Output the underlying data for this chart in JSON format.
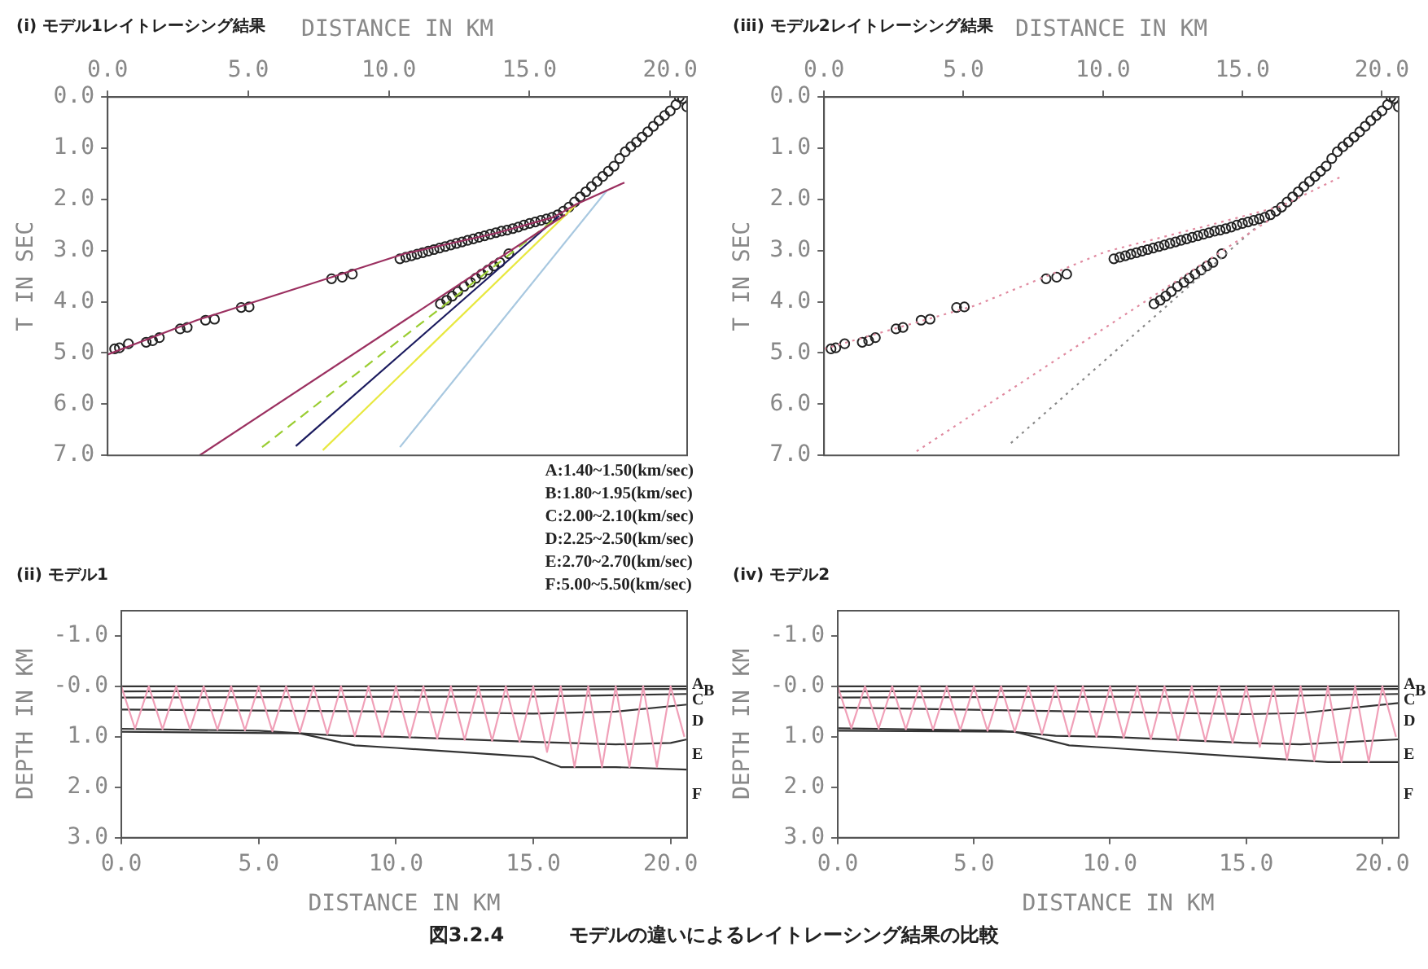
{
  "chart_data": [
    {
      "type": "line",
      "title": "(i) モデル1レイトレーシング結果",
      "annotations": [
        "A:1.40~1.50(km/sec)",
        "B:1.80~1.95(km/sec)",
        "C:2.00~2.10(km/sec)",
        "D:2.25~2.50(km/sec)",
        "E:2.70~2.70(km/sec)",
        "F:5.00~5.50(km/sec)"
      ],
      "xlabel": "DISTANCE IN KM",
      "ylabel": "T IN SEC",
      "xlim": [
        0,
        20.6
      ],
      "xticks": [
        {
          "value": 0,
          "label": "0.0"
        },
        {
          "value": 5,
          "label": "5.0"
        },
        {
          "value": 10,
          "label": "10.0"
        },
        {
          "value": 15,
          "label": "15.0"
        },
        {
          "value": 20,
          "label": "20.0"
        }
      ],
      "ylim": [
        7,
        0
      ],
      "yticks": [
        {
          "value": 0,
          "label": "0.0"
        },
        {
          "value": 1,
          "label": "1.0"
        },
        {
          "value": 2,
          "label": "2.0"
        },
        {
          "value": 3,
          "label": "3.0"
        },
        {
          "value": 4,
          "label": "4.0"
        },
        {
          "value": 5,
          "label": "5.0"
        },
        {
          "value": 6,
          "label": "6.0"
        },
        {
          "value": 7,
          "label": "7.0"
        }
      ],
      "series": [
        {
          "type": "line",
          "color": "#9b3060",
          "x": [
            0,
            3.17,
            7.39,
            10.56,
            13.73,
            15.84,
            16.68,
            18.37
          ],
          "values": [
            5.03,
            4.36,
            3.62,
            3.06,
            2.67,
            2.35,
            2.09,
            1.67
          ]
        },
        {
          "type": "line",
          "color": "#9b3060",
          "x": [
            3.27,
            16.26
          ],
          "values": [
            7.0,
            2.3
          ]
        },
        {
          "type": "line",
          "color": "#9acd32",
          "line_style": "dashed",
          "x": [
            5.49,
            15.84
          ],
          "values": [
            6.84,
            2.41
          ]
        },
        {
          "type": "line",
          "color": "#1a1a5e",
          "x": [
            6.69,
            16.05
          ],
          "values": [
            6.82,
            2.32
          ]
        },
        {
          "type": "line",
          "color": "#e8e840",
          "x": [
            7.65,
            16.68
          ],
          "values": [
            6.9,
            2.09
          ]
        },
        {
          "type": "line",
          "color": "#a8c8e0",
          "x": [
            10.39,
            17.74
          ],
          "values": [
            6.84,
            1.83
          ]
        },
        {
          "type": "scatter",
          "color": "#222222",
          "marker": "circle",
          "x": [
            0.25,
            0.42,
            0.74,
            1.37,
            1.6,
            1.84,
            2.58,
            2.83,
            3.48,
            3.8,
            4.75,
            5.03,
            7.96,
            8.34,
            8.7,
            10.39,
            10.6,
            10.8,
            11.0,
            11.2,
            11.4,
            11.6,
            11.8,
            12.0,
            12.2,
            12.4,
            12.6,
            12.8,
            13.0,
            13.2,
            13.4,
            13.6,
            13.8,
            14.0,
            14.2,
            14.4,
            14.6,
            14.8,
            15.0,
            15.2,
            15.4,
            15.6,
            15.8,
            16.0,
            16.2,
            16.4,
            16.6,
            16.8,
            17.0,
            17.2,
            17.4,
            17.6,
            17.8,
            18.0,
            18.2,
            18.4,
            18.6,
            18.8,
            19.0,
            19.2,
            19.4,
            19.6,
            19.8,
            20.0,
            20.2,
            20.32,
            20.44,
            20.59,
            11.83,
            12.05,
            12.25,
            12.45,
            12.67,
            12.9,
            13.09,
            13.3,
            13.52,
            13.73,
            13.94,
            14.26
          ],
          "values": [
            4.92,
            4.9,
            4.82,
            4.79,
            4.76,
            4.7,
            4.53,
            4.5,
            4.36,
            4.34,
            4.11,
            4.1,
            3.55,
            3.52,
            3.46,
            3.16,
            3.13,
            3.1,
            3.07,
            3.04,
            3.01,
            2.98,
            2.95,
            2.92,
            2.89,
            2.86,
            2.83,
            2.8,
            2.77,
            2.74,
            2.71,
            2.68,
            2.65,
            2.62,
            2.6,
            2.57,
            2.54,
            2.5,
            2.47,
            2.44,
            2.41,
            2.38,
            2.35,
            2.3,
            2.23,
            2.15,
            2.05,
            1.95,
            1.85,
            1.75,
            1.65,
            1.55,
            1.45,
            1.35,
            1.2,
            1.07,
            0.97,
            0.88,
            0.78,
            0.68,
            0.57,
            0.46,
            0.36,
            0.27,
            0.15,
            0.0,
            0.03,
            0.19,
            4.04,
            3.97,
            3.89,
            3.8,
            3.7,
            3.62,
            3.54,
            3.46,
            3.38,
            3.3,
            3.23,
            3.06
          ]
        }
      ]
    },
    {
      "type": "line",
      "title": "(iii) モデル2レイトレーシング結果",
      "xlabel": "DISTANCE IN KM",
      "ylabel": "T IN SEC",
      "xlim": [
        0,
        20.6
      ],
      "xticks": [
        {
          "value": 0,
          "label": "0.0"
        },
        {
          "value": 5,
          "label": "5.0"
        },
        {
          "value": 10,
          "label": "10.0"
        },
        {
          "value": 15,
          "label": "15.0"
        },
        {
          "value": 20,
          "label": "20.0"
        }
      ],
      "ylim": [
        7,
        0
      ],
      "yticks": [
        {
          "value": 0,
          "label": "0.0"
        },
        {
          "value": 1,
          "label": "1.0"
        },
        {
          "value": 2,
          "label": "2.0"
        },
        {
          "value": 3,
          "label": "3.0"
        },
        {
          "value": 4,
          "label": "4.0"
        },
        {
          "value": 5,
          "label": "5.0"
        },
        {
          "value": 6,
          "label": "6.0"
        },
        {
          "value": 7,
          "label": "7.0"
        }
      ],
      "series": [
        {
          "type": "line",
          "color": "#e08aa0",
          "line_style": "dotted",
          "x": [
            0,
            5.44,
            10.1,
            13.9,
            16.4,
            18.56
          ],
          "values": [
            4.92,
            4.07,
            3.02,
            2.49,
            2.13,
            1.55
          ]
        },
        {
          "type": "line",
          "color": "#e08aa0",
          "line_style": "dotted",
          "x": [
            3.32,
            16.0
          ],
          "values": [
            6.92,
            2.39
          ]
        },
        {
          "type": "line",
          "color": "#888888",
          "line_style": "dotted",
          "x": [
            6.7,
            15.6
          ],
          "values": [
            6.76,
            2.49
          ]
        },
        {
          "type": "scatter",
          "color": "#222222",
          "marker": "circle",
          "x": [
            0.25,
            0.42,
            0.74,
            1.37,
            1.6,
            1.84,
            2.58,
            2.83,
            3.48,
            3.8,
            4.75,
            5.03,
            7.96,
            8.34,
            8.7,
            10.39,
            10.6,
            10.8,
            11.0,
            11.2,
            11.4,
            11.6,
            11.8,
            12.0,
            12.2,
            12.4,
            12.6,
            12.8,
            13.0,
            13.2,
            13.4,
            13.6,
            13.8,
            14.0,
            14.2,
            14.4,
            14.6,
            14.8,
            15.0,
            15.2,
            15.4,
            15.6,
            15.8,
            16.0,
            16.2,
            16.4,
            16.6,
            16.8,
            17.0,
            17.2,
            17.4,
            17.6,
            17.8,
            18.0,
            18.2,
            18.4,
            18.6,
            18.8,
            19.0,
            19.2,
            19.4,
            19.6,
            19.8,
            20.0,
            20.2,
            20.32,
            20.44,
            20.59,
            11.83,
            12.05,
            12.25,
            12.45,
            12.67,
            12.9,
            13.09,
            13.3,
            13.52,
            13.73,
            13.94,
            14.26
          ],
          "values": [
            4.92,
            4.9,
            4.82,
            4.79,
            4.76,
            4.7,
            4.53,
            4.5,
            4.36,
            4.34,
            4.11,
            4.1,
            3.55,
            3.52,
            3.46,
            3.16,
            3.13,
            3.1,
            3.07,
            3.04,
            3.01,
            2.98,
            2.95,
            2.92,
            2.89,
            2.86,
            2.83,
            2.8,
            2.77,
            2.74,
            2.71,
            2.68,
            2.65,
            2.62,
            2.6,
            2.57,
            2.54,
            2.5,
            2.47,
            2.44,
            2.41,
            2.38,
            2.35,
            2.3,
            2.23,
            2.15,
            2.05,
            1.95,
            1.85,
            1.75,
            1.65,
            1.55,
            1.45,
            1.35,
            1.2,
            1.07,
            0.97,
            0.88,
            0.78,
            0.68,
            0.57,
            0.46,
            0.36,
            0.27,
            0.15,
            0.0,
            0.03,
            0.19,
            4.04,
            3.97,
            3.89,
            3.8,
            3.7,
            3.62,
            3.54,
            3.46,
            3.38,
            3.3,
            3.23,
            3.06
          ]
        }
      ]
    },
    {
      "type": "line",
      "title": "(ii) モデル1",
      "xlabel": "DISTANCE IN KM",
      "ylabel": "DEPTH IN KM",
      "xlim": [
        0,
        20.6
      ],
      "xticks": [
        {
          "value": 0,
          "label": "0.0"
        },
        {
          "value": 5,
          "label": "5.0"
        },
        {
          "value": 10,
          "label": "10.0"
        },
        {
          "value": 15,
          "label": "15.0"
        },
        {
          "value": 20,
          "label": "20.0"
        }
      ],
      "ylim": [
        3,
        -1.5
      ],
      "yticks": [
        {
          "value": -1,
          "label": "-1.0"
        },
        {
          "value": 0,
          "label": "-0.0"
        },
        {
          "value": 1,
          "label": "1.0"
        },
        {
          "value": 2,
          "label": "2.0"
        },
        {
          "value": 3,
          "label": "3.0"
        }
      ],
      "annotations": [
        "A",
        "B",
        "C",
        "D",
        "E",
        "F"
      ],
      "series": [
        {
          "type": "line",
          "color": "#f0a0b8",
          "x": [
            0,
            0.5,
            1,
            1.5,
            2,
            2.5,
            3,
            3.5,
            4,
            4.5,
            5,
            5.5,
            6,
            6.5,
            7,
            7.5,
            8,
            8.5,
            9,
            9.5,
            10,
            10.5,
            11,
            11.5,
            12,
            12.5,
            13,
            13.5,
            14,
            14.5,
            15,
            15.5,
            16,
            16.5,
            17,
            17.5,
            18,
            18.5,
            19,
            19.5,
            20,
            20.5
          ],
          "values": [
            0,
            0.84,
            0,
            0.85,
            0,
            0.85,
            0,
            0.86,
            0,
            0.87,
            0,
            0.89,
            0,
            0.91,
            0,
            0.95,
            0,
            0.99,
            0,
            1.0,
            0,
            1.02,
            0,
            1.04,
            0,
            1.06,
            0,
            1.08,
            0,
            1.1,
            0,
            1.3,
            0,
            1.6,
            0,
            1.6,
            0,
            1.6,
            0,
            1.6,
            0,
            1.0
          ]
        },
        {
          "type": "line",
          "color": "#333333",
          "x": [
            0,
            20.6
          ],
          "values": [
            0,
            0
          ]
        },
        {
          "type": "line",
          "color": "#333333",
          "x": [
            0,
            20.6
          ],
          "values": [
            0.1,
            0.05
          ]
        },
        {
          "type": "line",
          "color": "#333333",
          "x": [
            0,
            15,
            20.6
          ],
          "values": [
            0.22,
            0.2,
            0.15
          ]
        },
        {
          "type": "line",
          "color": "#333333",
          "x": [
            0,
            10,
            15,
            18,
            20.6
          ],
          "values": [
            0.46,
            0.5,
            0.54,
            0.5,
            0.36
          ]
        },
        {
          "type": "line",
          "color": "#333333",
          "x": [
            0,
            5,
            8,
            10,
            15,
            18,
            20,
            20.6
          ],
          "values": [
            0.84,
            0.88,
            0.98,
            1.0,
            1.1,
            1.15,
            1.12,
            1.05
          ]
        },
        {
          "type": "line",
          "color": "#333333",
          "x": [
            0,
            6.5,
            8.5,
            10,
            15,
            16,
            18,
            20.6
          ],
          "values": [
            0.9,
            0.93,
            1.17,
            1.22,
            1.4,
            1.6,
            1.6,
            1.65
          ]
        }
      ]
    },
    {
      "type": "line",
      "title": "(iv) モデル2",
      "xlabel": "DISTANCE IN KM",
      "ylabel": "DEPTH IN KM",
      "xlim": [
        0,
        20.6
      ],
      "xticks": [
        {
          "value": 0,
          "label": "0.0"
        },
        {
          "value": 5,
          "label": "5.0"
        },
        {
          "value": 10,
          "label": "10.0"
        },
        {
          "value": 15,
          "label": "15.0"
        },
        {
          "value": 20,
          "label": "20.0"
        }
      ],
      "ylim": [
        3,
        -1.5
      ],
      "yticks": [
        {
          "value": -1,
          "label": "-1.0"
        },
        {
          "value": 0,
          "label": "-0.0"
        },
        {
          "value": 1,
          "label": "1.0"
        },
        {
          "value": 2,
          "label": "2.0"
        },
        {
          "value": 3,
          "label": "3.0"
        }
      ],
      "annotations": [
        "A",
        "B",
        "C",
        "D",
        "E",
        "F"
      ],
      "series": [
        {
          "type": "line",
          "color": "#f0a0b8",
          "x": [
            0,
            0.5,
            1,
            1.5,
            2,
            2.5,
            3,
            3.5,
            4,
            4.5,
            5,
            5.5,
            6,
            6.5,
            7,
            7.5,
            8,
            8.5,
            9,
            9.5,
            10,
            10.5,
            11,
            11.5,
            12,
            12.5,
            13,
            13.5,
            14,
            14.5,
            15,
            15.5,
            16,
            16.5,
            17,
            17.5,
            18,
            18.5,
            19,
            19.5,
            20,
            20.5
          ],
          "values": [
            0,
            0.83,
            0,
            0.84,
            0,
            0.85,
            0,
            0.86,
            0,
            0.87,
            0,
            0.88,
            0,
            0.9,
            0,
            0.95,
            0,
            0.99,
            0,
            1.0,
            0,
            1.02,
            0,
            1.05,
            0,
            1.07,
            0,
            1.09,
            0,
            1.12,
            0,
            1.2,
            0,
            1.45,
            0,
            1.48,
            0,
            1.5,
            0,
            1.5,
            0,
            1.0
          ]
        },
        {
          "type": "line",
          "color": "#333333",
          "x": [
            0,
            20.6
          ],
          "values": [
            0,
            0
          ]
        },
        {
          "type": "line",
          "color": "#333333",
          "x": [
            0,
            20.6
          ],
          "values": [
            0.1,
            0.05
          ]
        },
        {
          "type": "line",
          "color": "#333333",
          "x": [
            0,
            15,
            20.6
          ],
          "values": [
            0.22,
            0.2,
            0.15
          ]
        },
        {
          "type": "line",
          "color": "#333333",
          "x": [
            0,
            15,
            17,
            20.6
          ],
          "values": [
            0.42,
            0.55,
            0.53,
            0.33
          ]
        },
        {
          "type": "line",
          "color": "#333333",
          "x": [
            0,
            6,
            8,
            10,
            15,
            17,
            20.6
          ],
          "values": [
            0.83,
            0.88,
            0.98,
            1.0,
            1.12,
            1.15,
            1.05
          ]
        },
        {
          "type": "line",
          "color": "#333333",
          "x": [
            0,
            6.5,
            8.5,
            10,
            15,
            18,
            20.6
          ],
          "values": [
            0.88,
            0.9,
            1.17,
            1.22,
            1.4,
            1.5,
            1.5
          ]
        }
      ]
    },
    {
      "type": "other",
      "annotations": [
        "図3.2.4",
        "モデルの違いによるレイトレーシング結果の比較"
      ]
    }
  ]
}
